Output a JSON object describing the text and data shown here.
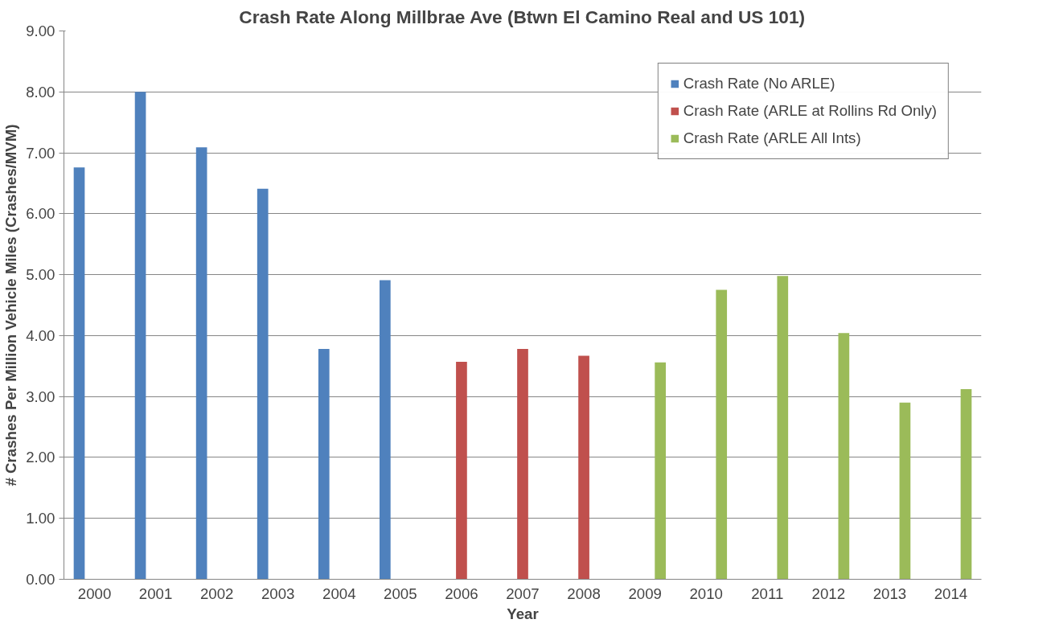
{
  "chart_data": {
    "type": "bar",
    "title": "Crash Rate Along Millbrae Ave (Btwn El Camino Real and US 101)",
    "xlabel": "Year",
    "ylabel": "# Crashes Per Million Vehicle Miles (Crashes/MVM)",
    "categories": [
      "2000",
      "2001",
      "2002",
      "2003",
      "2004",
      "2005",
      "2006",
      "2007",
      "2008",
      "2009",
      "2010",
      "2011",
      "2012",
      "2013",
      "2014"
    ],
    "series": [
      {
        "name": "Crash Rate (No ARLE)",
        "color": "#4f81bd",
        "values": [
          6.76,
          8.0,
          7.09,
          6.41,
          3.78,
          4.91,
          null,
          null,
          null,
          null,
          null,
          null,
          null,
          null,
          null
        ]
      },
      {
        "name": "Crash Rate (ARLE at Rollins Rd Only)",
        "color": "#c0504d",
        "values": [
          null,
          null,
          null,
          null,
          null,
          null,
          3.57,
          3.78,
          3.67,
          null,
          null,
          null,
          null,
          null,
          null
        ]
      },
      {
        "name": "Crash Rate (ARLE All Ints)",
        "color": "#9bbb59",
        "values": [
          null,
          null,
          null,
          null,
          null,
          null,
          null,
          null,
          null,
          3.56,
          4.75,
          4.98,
          4.04,
          2.9,
          3.12
        ]
      }
    ],
    "ylim": [
      0,
      9
    ],
    "yticks": [
      {
        "value": 0,
        "label": "0.00"
      },
      {
        "value": 1,
        "label": "1.00"
      },
      {
        "value": 2,
        "label": "2.00"
      },
      {
        "value": 3,
        "label": "3.00"
      },
      {
        "value": 4,
        "label": "4.00"
      },
      {
        "value": 5,
        "label": "5.00"
      },
      {
        "value": 6,
        "label": "6.00"
      },
      {
        "value": 7,
        "label": "7.00"
      },
      {
        "value": 8,
        "label": "8.00"
      },
      {
        "value": 9,
        "label": "9.00"
      }
    ],
    "grid": "y",
    "legend": "top right"
  }
}
